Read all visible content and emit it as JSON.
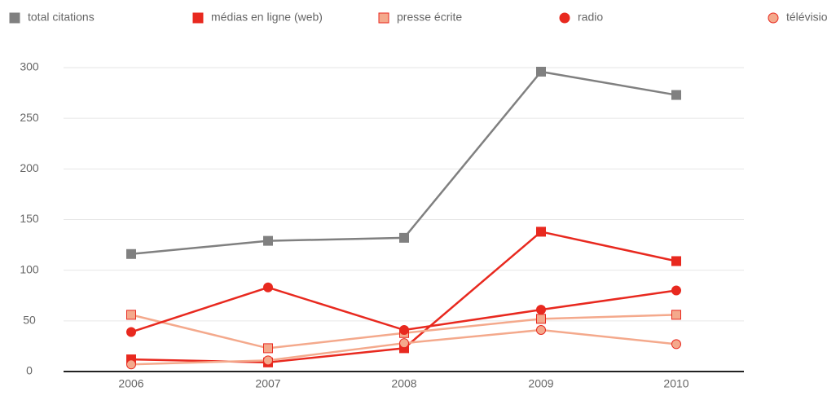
{
  "chart_data": {
    "type": "line",
    "categories": [
      "2006",
      "2007",
      "2008",
      "2009",
      "2010"
    ],
    "series": [
      {
        "name": "total citations",
        "color": "#808080",
        "edge_color": "#808080",
        "marker": "square",
        "values": [
          116,
          129,
          132,
          296,
          273
        ]
      },
      {
        "name": "médias en ligne (web)",
        "color": "#e8291f",
        "edge_color": "#e8291f",
        "marker": "square",
        "values": [
          12,
          9,
          23,
          138,
          109
        ]
      },
      {
        "name": "presse écrite",
        "color": "#f4a98c",
        "edge_color": "#e8291f",
        "marker": "square",
        "values": [
          56,
          23,
          38,
          52,
          56
        ]
      },
      {
        "name": "radio",
        "color": "#e8291f",
        "edge_color": "#e8291f",
        "marker": "circle",
        "values": [
          39,
          83,
          41,
          61,
          80
        ]
      },
      {
        "name": "télévision",
        "color": "#f4a98c",
        "edge_color": "#e8291f",
        "marker": "circle",
        "values": [
          7,
          11,
          28,
          41,
          27
        ]
      }
    ],
    "ylim": [
      0,
      300
    ],
    "yticks": [
      0,
      50,
      100,
      150,
      200,
      250,
      300
    ],
    "grid": true,
    "legend": "top"
  }
}
